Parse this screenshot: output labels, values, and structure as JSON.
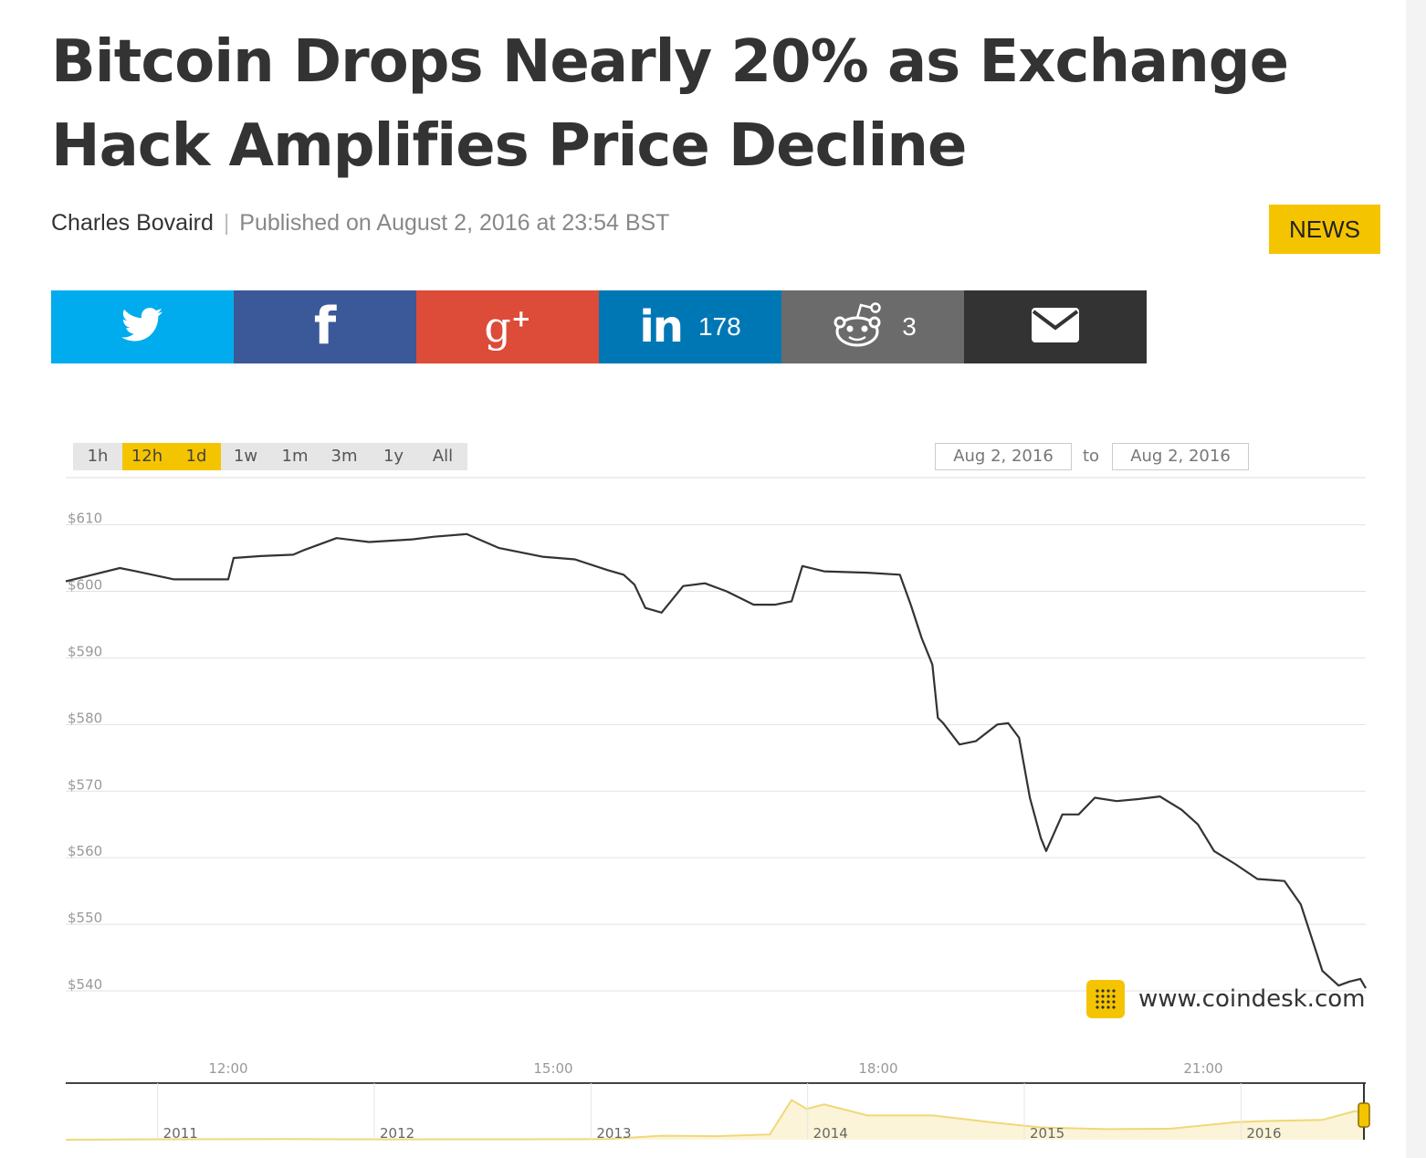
{
  "article": {
    "title": "Bitcoin Drops Nearly 20% as Exchange Hack Amplifies Price Decline",
    "author": "Charles Bovaird",
    "separator": "|",
    "published": "Published on August 2, 2016 at 23:54 BST",
    "category_badge": "NEWS"
  },
  "share": {
    "twitter": {
      "icon": "twitter-bird-icon"
    },
    "facebook": {
      "icon": "facebook-icon",
      "glyph": "f"
    },
    "googleplus": {
      "icon": "google-plus-icon",
      "glyph": "g",
      "plus": "+"
    },
    "linkedin": {
      "icon": "linkedin-icon",
      "glyph": "in",
      "count": "178"
    },
    "reddit": {
      "icon": "reddit-alien-icon",
      "count": "3"
    },
    "email": {
      "icon": "envelope-icon"
    },
    "colors": {
      "twitter": "#00aced",
      "facebook": "#3b5998",
      "googleplus": "#dd4b39",
      "linkedin": "#0077b5",
      "reddit": "#6b6b6b",
      "email": "#333333"
    }
  },
  "chart_controls": {
    "ranges": [
      "1h",
      "12h",
      "1d",
      "1w",
      "1m",
      "3m",
      "1y",
      "All"
    ],
    "active_ranges": [
      "12h",
      "1d"
    ],
    "from_date": "Aug 2, 2016",
    "to_label": "to",
    "to_date": "Aug 2, 2016"
  },
  "brand": {
    "text": "www.coindesk.com",
    "color": "#f5c400"
  },
  "chart_data": {
    "type": "line",
    "title": "",
    "xlabel": "",
    "ylabel": "",
    "y_tick_labels": [
      "$610",
      "$600",
      "$590",
      "$580",
      "$570",
      "$560",
      "$550",
      "$540"
    ],
    "y_ticks": [
      610,
      600,
      590,
      580,
      570,
      560,
      550,
      540
    ],
    "x_tick_labels": [
      "12:00",
      "15:00",
      "18:00",
      "21:00"
    ],
    "x_ticks": [
      12,
      15,
      18,
      21
    ],
    "xlim": [
      10.5,
      22.5
    ],
    "ylim": [
      540,
      612
    ],
    "grid": true,
    "series": [
      {
        "color": "#333333",
        "x": [
          10.5,
          10.75,
          11.0,
          11.15,
          11.5,
          11.75,
          12.0,
          12.05,
          12.3,
          12.6,
          12.7,
          13.0,
          13.3,
          13.7,
          13.9,
          14.2,
          14.5,
          14.9,
          15.2,
          15.5,
          15.65,
          15.75,
          15.85,
          16.0,
          16.2,
          16.4,
          16.6,
          16.85,
          17.05,
          17.2,
          17.3,
          17.5,
          17.9,
          18.2,
          18.3,
          18.4,
          18.5,
          18.55,
          18.6,
          18.75,
          18.9,
          19.1,
          19.2,
          19.3,
          19.4,
          19.5,
          19.55,
          19.7,
          19.85,
          20.0,
          20.2,
          20.4,
          20.6,
          20.8,
          20.95,
          21.1,
          21.3,
          21.5,
          21.75,
          21.9,
          22.0,
          22.1,
          22.25,
          22.35,
          22.45,
          22.5
        ],
        "y": [
          601.5,
          602.5,
          603.5,
          603.0,
          601.8,
          601.8,
          601.8,
          605.0,
          605.3,
          605.5,
          606.2,
          608.0,
          607.4,
          607.8,
          608.2,
          608.6,
          606.5,
          605.2,
          604.8,
          603.2,
          602.5,
          601.0,
          597.5,
          596.8,
          600.8,
          601.2,
          600.0,
          598.0,
          598.0,
          598.5,
          603.8,
          603.0,
          602.8,
          602.5,
          598.0,
          593.0,
          589.0,
          581.0,
          580.2,
          577.0,
          577.5,
          580.0,
          580.2,
          578.0,
          569.0,
          563.0,
          561.0,
          566.5,
          566.5,
          569.0,
          568.5,
          568.8,
          569.2,
          567.2,
          565.0,
          561.0,
          559.0,
          556.8,
          556.5,
          553.0,
          548.0,
          543.0,
          540.8,
          541.4,
          541.8,
          540.4
        ]
      }
    ],
    "navigator": {
      "x_tick_labels": [
        "2011",
        "2012",
        "2013",
        "2014",
        "2015",
        "2016"
      ],
      "x_ticks": [
        2011,
        2012,
        2013,
        2014,
        2015,
        2016
      ],
      "xlim": [
        2010.5,
        2016.5
      ],
      "ylim": [
        0,
        1200
      ],
      "color": "#f0d878",
      "x": [
        2010.5,
        2011.0,
        2011.5,
        2012.0,
        2012.5,
        2013.0,
        2013.25,
        2013.5,
        2013.75,
        2013.85,
        2013.92,
        2014.0,
        2014.2,
        2014.5,
        2014.8,
        2015.0,
        2015.3,
        2015.6,
        2015.9,
        2016.0,
        2016.3,
        2016.45,
        2016.5
      ],
      "y": [
        0,
        10,
        15,
        8,
        10,
        15,
        90,
        80,
        120,
        900,
        700,
        800,
        550,
        550,
        380,
        280,
        240,
        250,
        400,
        420,
        450,
        650,
        580
      ]
    }
  }
}
